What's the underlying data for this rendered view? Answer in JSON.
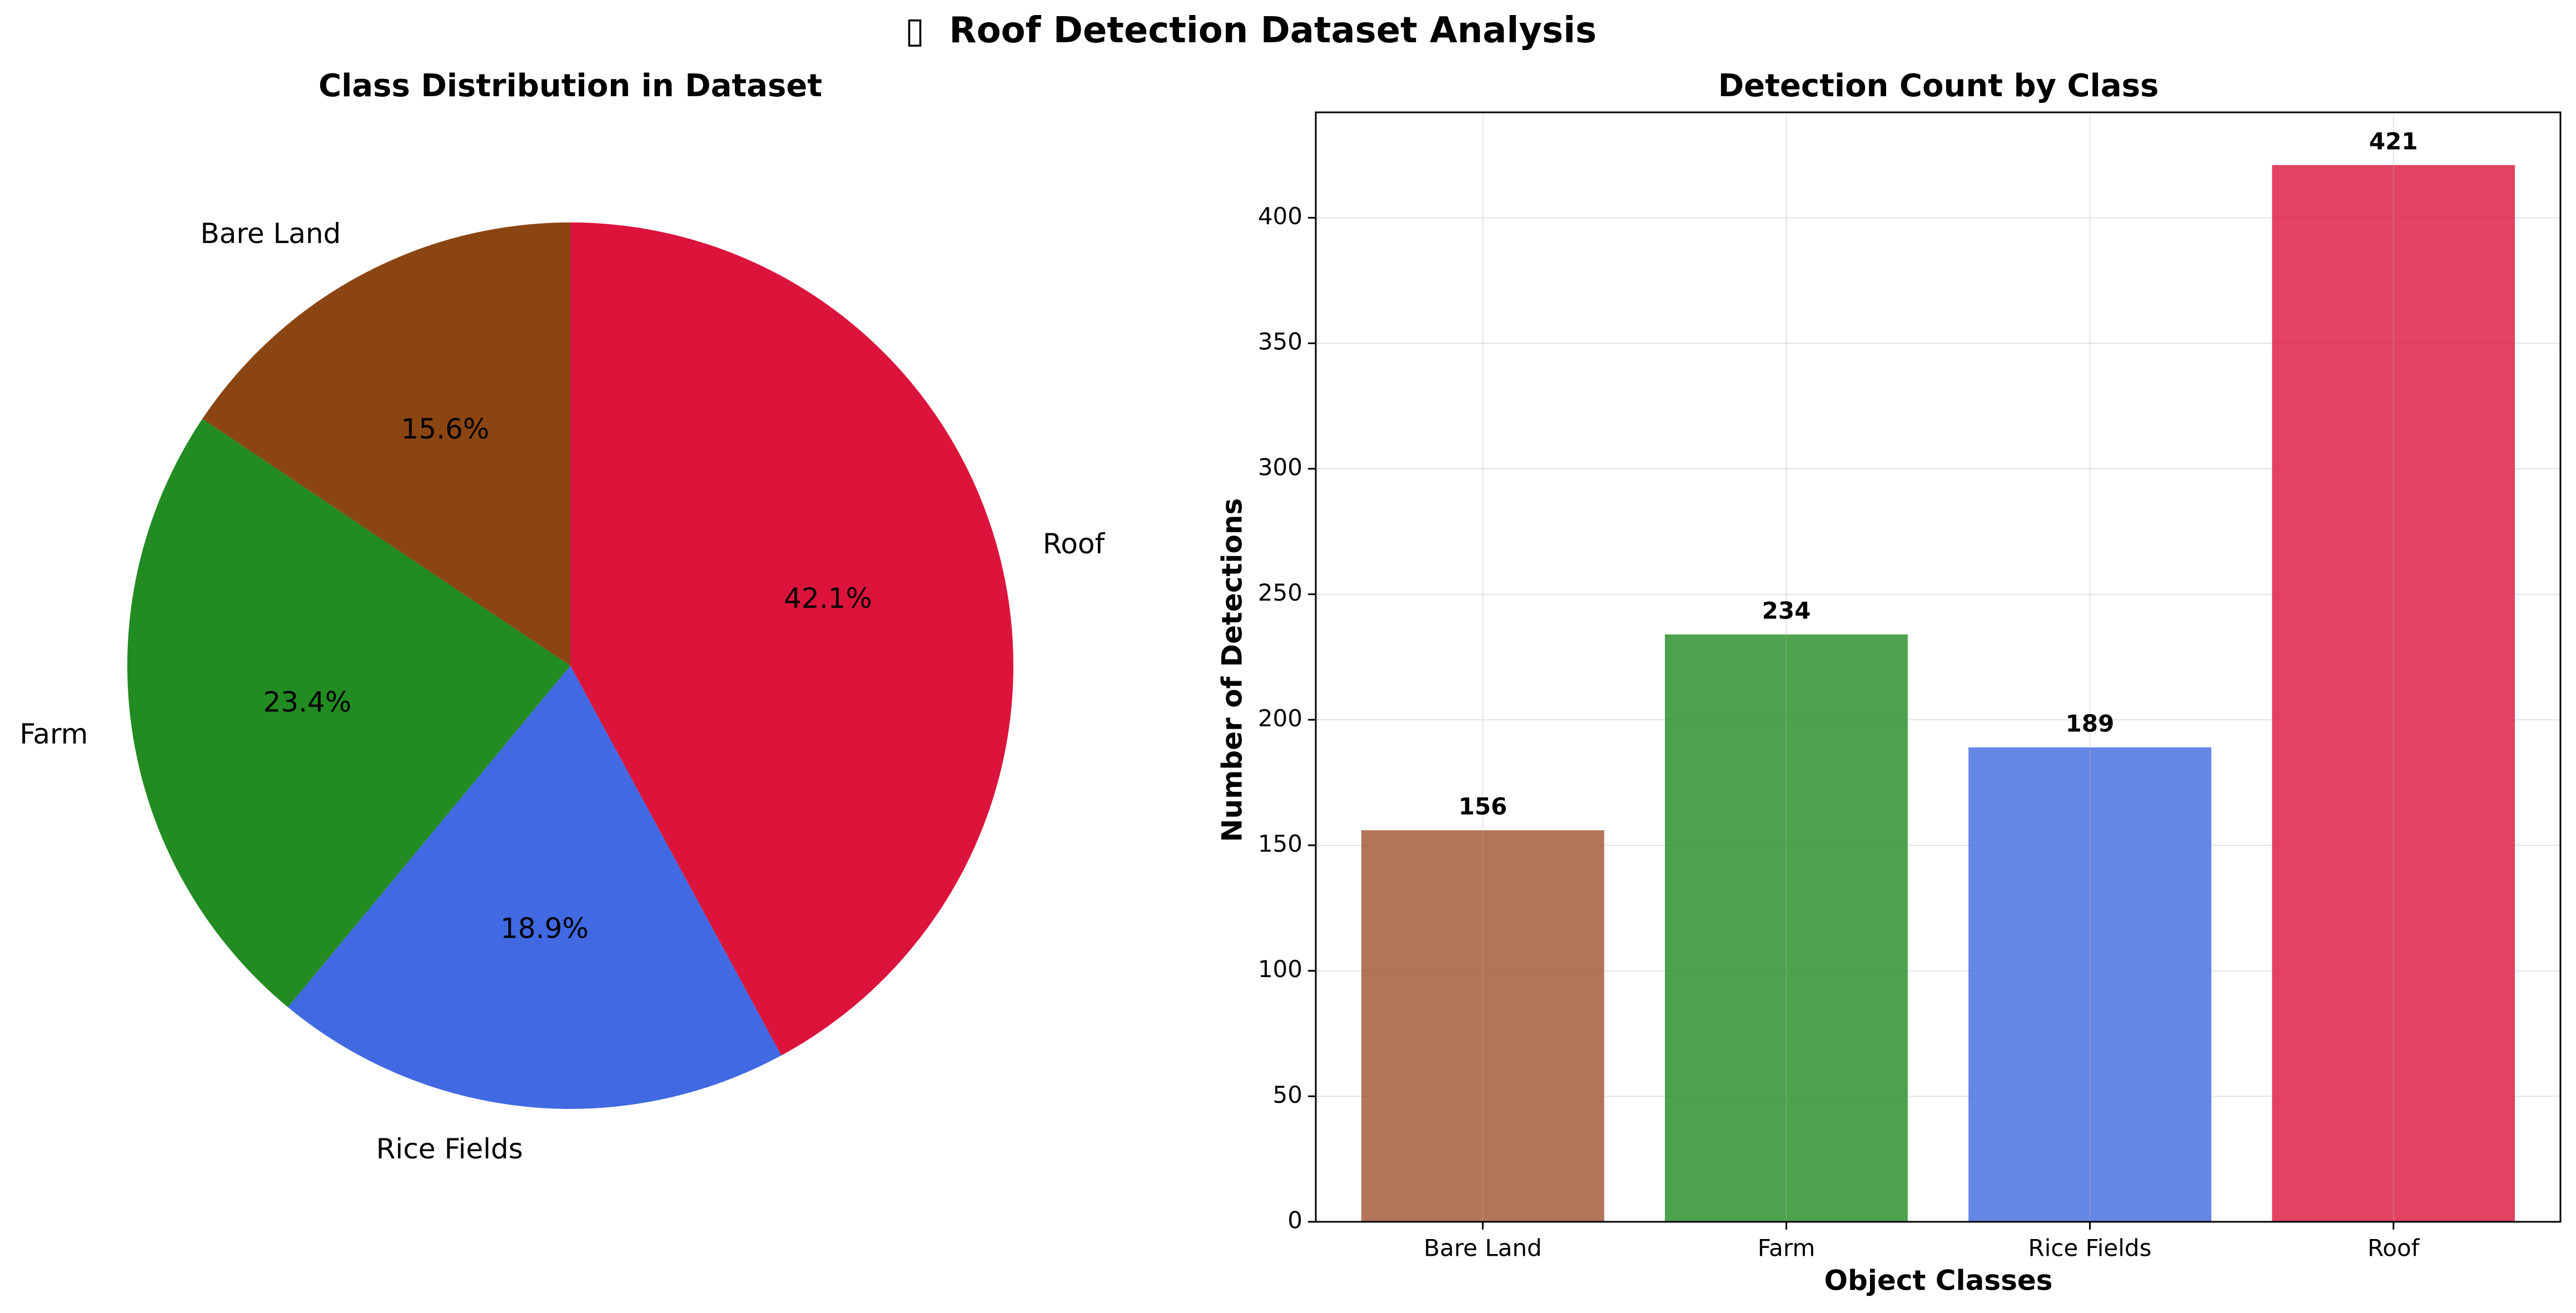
{
  "figure": {
    "title_icon": "▯",
    "title": "Roof Detection Dataset Analysis"
  },
  "chart_data": [
    {
      "type": "pie",
      "title": "Class Distribution in Dataset",
      "slices": [
        {
          "label": "Roof",
          "value": 42.1,
          "pct_label": "42.1%",
          "color": "#DC143C"
        },
        {
          "label": "Rice Fields",
          "value": 18.9,
          "pct_label": "18.9%",
          "color": "#4169E1"
        },
        {
          "label": "Farm",
          "value": 23.4,
          "pct_label": "23.4%",
          "color": "#228B22"
        },
        {
          "label": "Bare Land",
          "value": 15.6,
          "pct_label": "15.6%",
          "color": "#8B4513"
        }
      ]
    },
    {
      "type": "bar",
      "title": "Detection Count by Class",
      "xlabel": "Object Classes",
      "ylabel": "Number of Detections",
      "categories": [
        "Bare Land",
        "Farm",
        "Rice Fields",
        "Roof"
      ],
      "values": [
        156,
        234,
        189,
        421
      ],
      "value_labels": [
        "156",
        "234",
        "189",
        "421"
      ],
      "colors": [
        "#A0522D",
        "#228B22",
        "#4169E1",
        "#DC143C"
      ],
      "ylim": [
        0,
        442
      ],
      "yticks": [
        0,
        50,
        100,
        150,
        200,
        250,
        300,
        350,
        400
      ],
      "ytick_labels": [
        "0",
        "50",
        "100",
        "150",
        "200",
        "250",
        "300",
        "350",
        "400"
      ],
      "grid": true
    }
  ]
}
